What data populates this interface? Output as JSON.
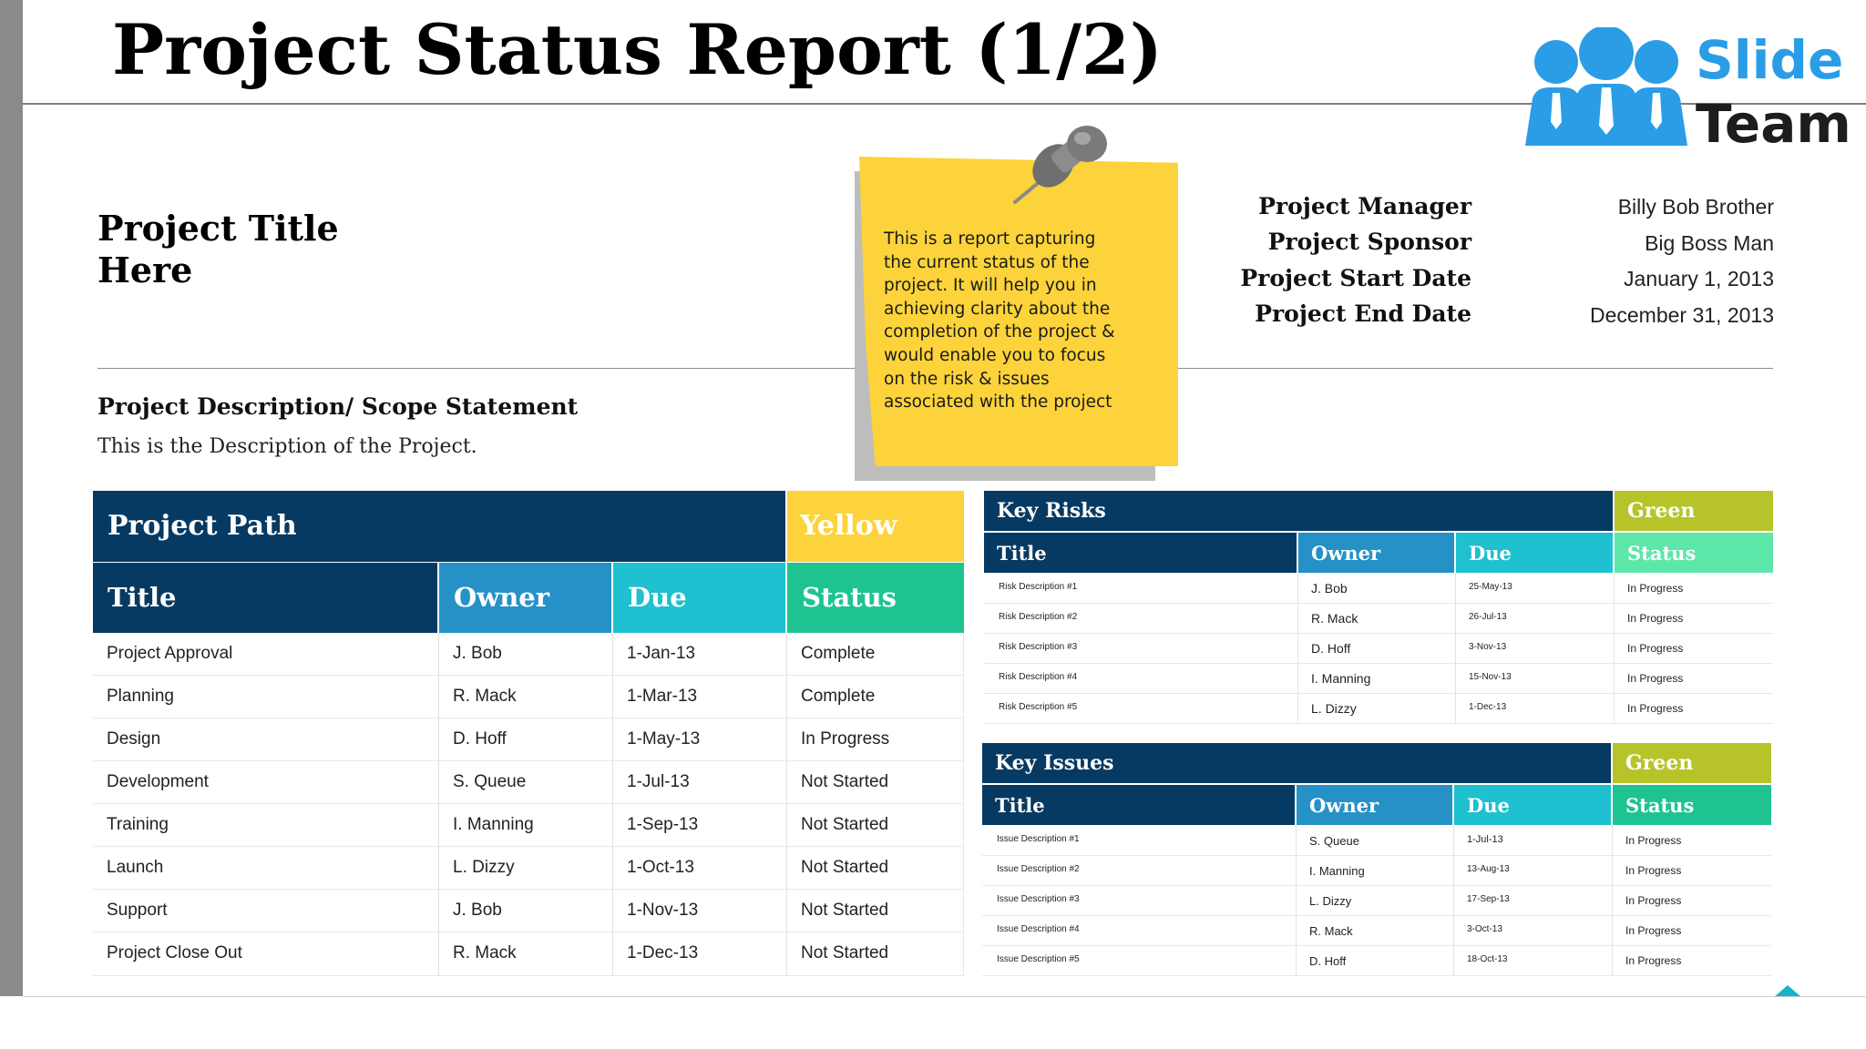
{
  "slide": {
    "title": "Project Status Report (1/2)"
  },
  "logo": {
    "word1": "Slide",
    "word2": "Team",
    "icon": "people-group-icon",
    "color_primary": "#2a9de6"
  },
  "project": {
    "title": "Project Title Here",
    "meta": [
      {
        "label": "Project Manager",
        "value": "Billy Bob Brother"
      },
      {
        "label": "Project Sponsor",
        "value": "Big Boss Man"
      },
      {
        "label": "Project Start Date",
        "value": "January 1, 2013"
      },
      {
        "label": "Project End Date",
        "value": "December 31, 2013"
      }
    ],
    "description_heading": "Project Description/ Scope Statement",
    "description_text": "This is the Description of the Project."
  },
  "sticky_note": {
    "text": "This is a report capturing the current status of the project. It will help you in achieving clarity about the completion of the project & would enable you to focus on the risk & issues associated with the project",
    "color": "#fcd33a",
    "icon": "pushpin-icon"
  },
  "project_path": {
    "title": "Project Path",
    "status_label": "Yellow",
    "status_color": "#fcd33a",
    "columns": [
      "Title",
      "Owner",
      "Due",
      "Status"
    ],
    "rows": [
      [
        "Project Approval",
        "J. Bob",
        "1-Jan-13",
        "Complete"
      ],
      [
        "Planning",
        "R. Mack",
        "1-Mar-13",
        "Complete"
      ],
      [
        "Design",
        "D. Hoff",
        "1-May-13",
        "In Progress"
      ],
      [
        "Development",
        "S. Queue",
        "1-Jul-13",
        "Not Started"
      ],
      [
        "Training",
        "I. Manning",
        "1-Sep-13",
        "Not Started"
      ],
      [
        "Launch",
        "L. Dizzy",
        "1-Oct-13",
        "Not Started"
      ],
      [
        "Support",
        "J. Bob",
        "1-Nov-13",
        "Not Started"
      ],
      [
        "Project Close Out",
        "R. Mack",
        "1-Dec-13",
        "Not Started"
      ]
    ]
  },
  "key_risks": {
    "title": "Key Risks",
    "status_label": "Green",
    "status_color": "#b6c42a",
    "columns": [
      "Title",
      "Owner",
      "Due",
      "Status"
    ],
    "rows": [
      [
        "Risk Description #1",
        "J. Bob",
        "25-May-13",
        "In Progress"
      ],
      [
        "Risk Description #2",
        "R. Mack",
        "26-Jul-13",
        "In Progress"
      ],
      [
        "Risk Description #3",
        "D. Hoff",
        "3-Nov-13",
        "In Progress"
      ],
      [
        "Risk Description #4",
        "I. Manning",
        "15-Nov-13",
        "In Progress"
      ],
      [
        "Risk Description #5",
        "L. Dizzy",
        "1-Dec-13",
        "In Progress"
      ]
    ]
  },
  "key_issues": {
    "title": "Key Issues",
    "status_label": "Green",
    "status_color": "#b6c42a",
    "columns": [
      "Title",
      "Owner",
      "Due",
      "Status"
    ],
    "rows": [
      [
        "Issue Description #1",
        "S. Queue",
        "1-Jul-13",
        "In Progress"
      ],
      [
        "Issue Description #2",
        "I. Manning",
        "13-Aug-13",
        "In Progress"
      ],
      [
        "Issue Description #3",
        "L. Dizzy",
        "17-Sep-13",
        "In Progress"
      ],
      [
        "Issue Description #4",
        "R. Mack",
        "3-Oct-13",
        "In Progress"
      ],
      [
        "Issue Description #5",
        "D. Hoff",
        "18-Oct-13",
        "In Progress"
      ]
    ]
  },
  "colors": {
    "navy": "#073a62",
    "blue": "#2591c7",
    "cyan": "#1fc0cf",
    "green": "#1fc391",
    "mint": "#5de7ab"
  }
}
